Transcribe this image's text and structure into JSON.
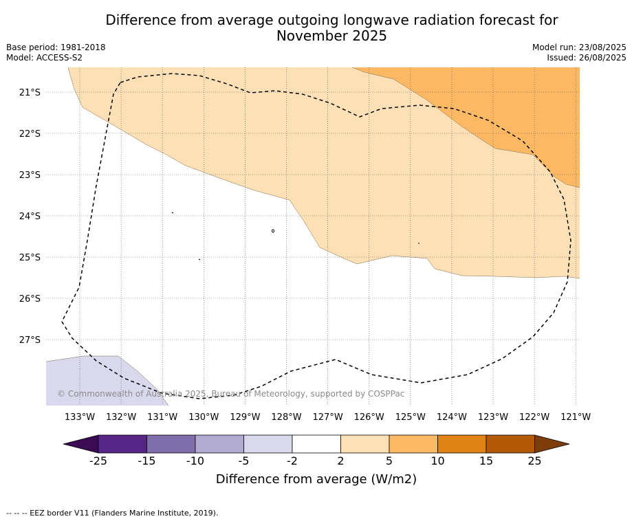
{
  "title_line1": "Difference from average outgoing longwave radiation forecast for",
  "title_line2": "November 2025",
  "meta": {
    "base_period": "Base period: 1981-2018",
    "model": "Model: ACCESS-S2",
    "model_run": "Model run: 23/08/2025",
    "issued": "Issued: 26/08/2025"
  },
  "map": {
    "lon_ticks": [
      "133°W",
      "132°W",
      "131°W",
      "130°W",
      "129°W",
      "128°W",
      "127°W",
      "126°W",
      "125°W",
      "124°W",
      "123°W",
      "122°W",
      "121°W"
    ],
    "lat_ticks": [
      "21°S",
      "22°S",
      "23°S",
      "24°S",
      "25°S",
      "26°S",
      "27°S"
    ],
    "credit": "© Commonwealth of Australia 2025, Bureau of Meteorology, supported by COSPPac",
    "colors": {
      "light_orange": "#fde0b6",
      "mid_orange": "#fdb864",
      "light_purple": "#d9d8ec",
      "eez_line": "#000000"
    }
  },
  "colorbar": {
    "labels": [
      "-25",
      "-15",
      "-10",
      "-5",
      "-2",
      "2",
      "5",
      "10",
      "15",
      "25"
    ],
    "colors": [
      "#3b0b54",
      "#562586",
      "#7e6fab",
      "#b1abd1",
      "#d9d8ec",
      "#ffffff",
      "#fde0b6",
      "#fdb864",
      "#e08214",
      "#b35906",
      "#7f3b08"
    ],
    "title": "Difference from average (W/m2)"
  },
  "footer": "--  --  -- EEZ border V11 (Flanders Marine Institute, 2019)."
}
